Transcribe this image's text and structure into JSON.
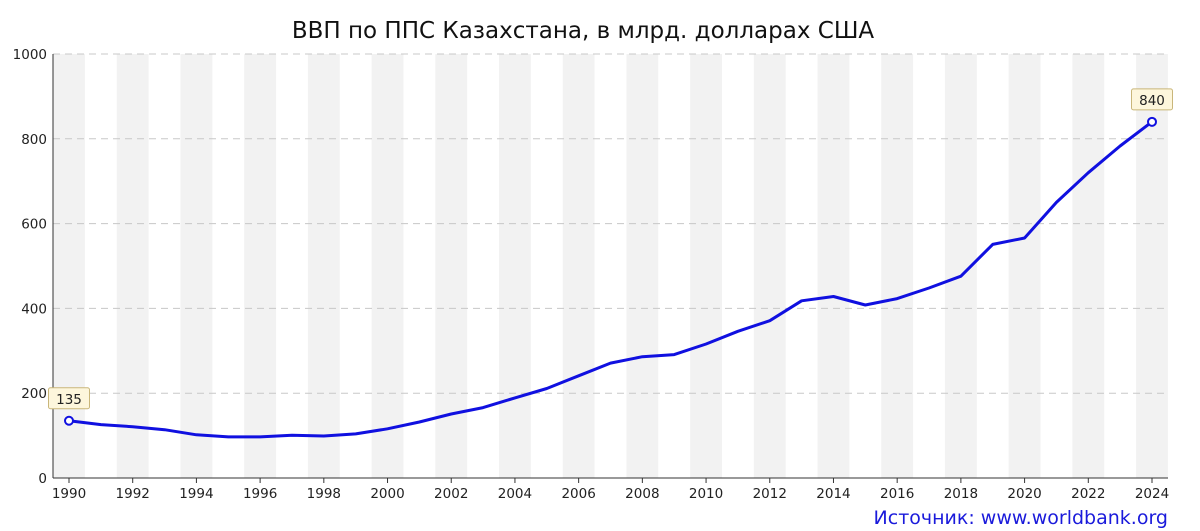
{
  "chart_data": {
    "type": "line",
    "title": "ВВП по ППС Казахстана, в млрд. долларах США",
    "x": [
      1990,
      1991,
      1992,
      1993,
      1994,
      1995,
      1996,
      1997,
      1998,
      1999,
      2000,
      2001,
      2002,
      2003,
      2004,
      2005,
      2006,
      2007,
      2008,
      2009,
      2010,
      2011,
      2012,
      2013,
      2014,
      2015,
      2016,
      2017,
      2018,
      2019,
      2020,
      2021,
      2022,
      2023,
      2024
    ],
    "series": [
      {
        "values": [
          135,
          126,
          121,
          114,
          102,
          97,
          97,
          101,
          99,
          104,
          116,
          132,
          151,
          166,
          189,
          211,
          241,
          271,
          286,
          291,
          316,
          346,
          371,
          418,
          428,
          408,
          423,
          448,
          476,
          551,
          566,
          650,
          720,
          783,
          840
        ],
        "color": "#1010e0"
      }
    ],
    "xticks": [
      "1990",
      "1992",
      "1994",
      "1996",
      "1998",
      "2000",
      "2002",
      "2004",
      "2006",
      "2008",
      "2010",
      "2012",
      "2014",
      "2016",
      "2018",
      "2020",
      "2022",
      "2024"
    ],
    "yticks": [
      "0",
      "200",
      "400",
      "600",
      "800",
      "1000"
    ],
    "ylim": [
      0,
      1000
    ],
    "xlim": [
      1990,
      2024
    ],
    "grid": true,
    "annotations": [
      {
        "x": 1990,
        "y": 135,
        "text": "135"
      },
      {
        "x": 2024,
        "y": 840,
        "text": "840"
      }
    ]
  },
  "source": "Источник: www.worldbank.org"
}
